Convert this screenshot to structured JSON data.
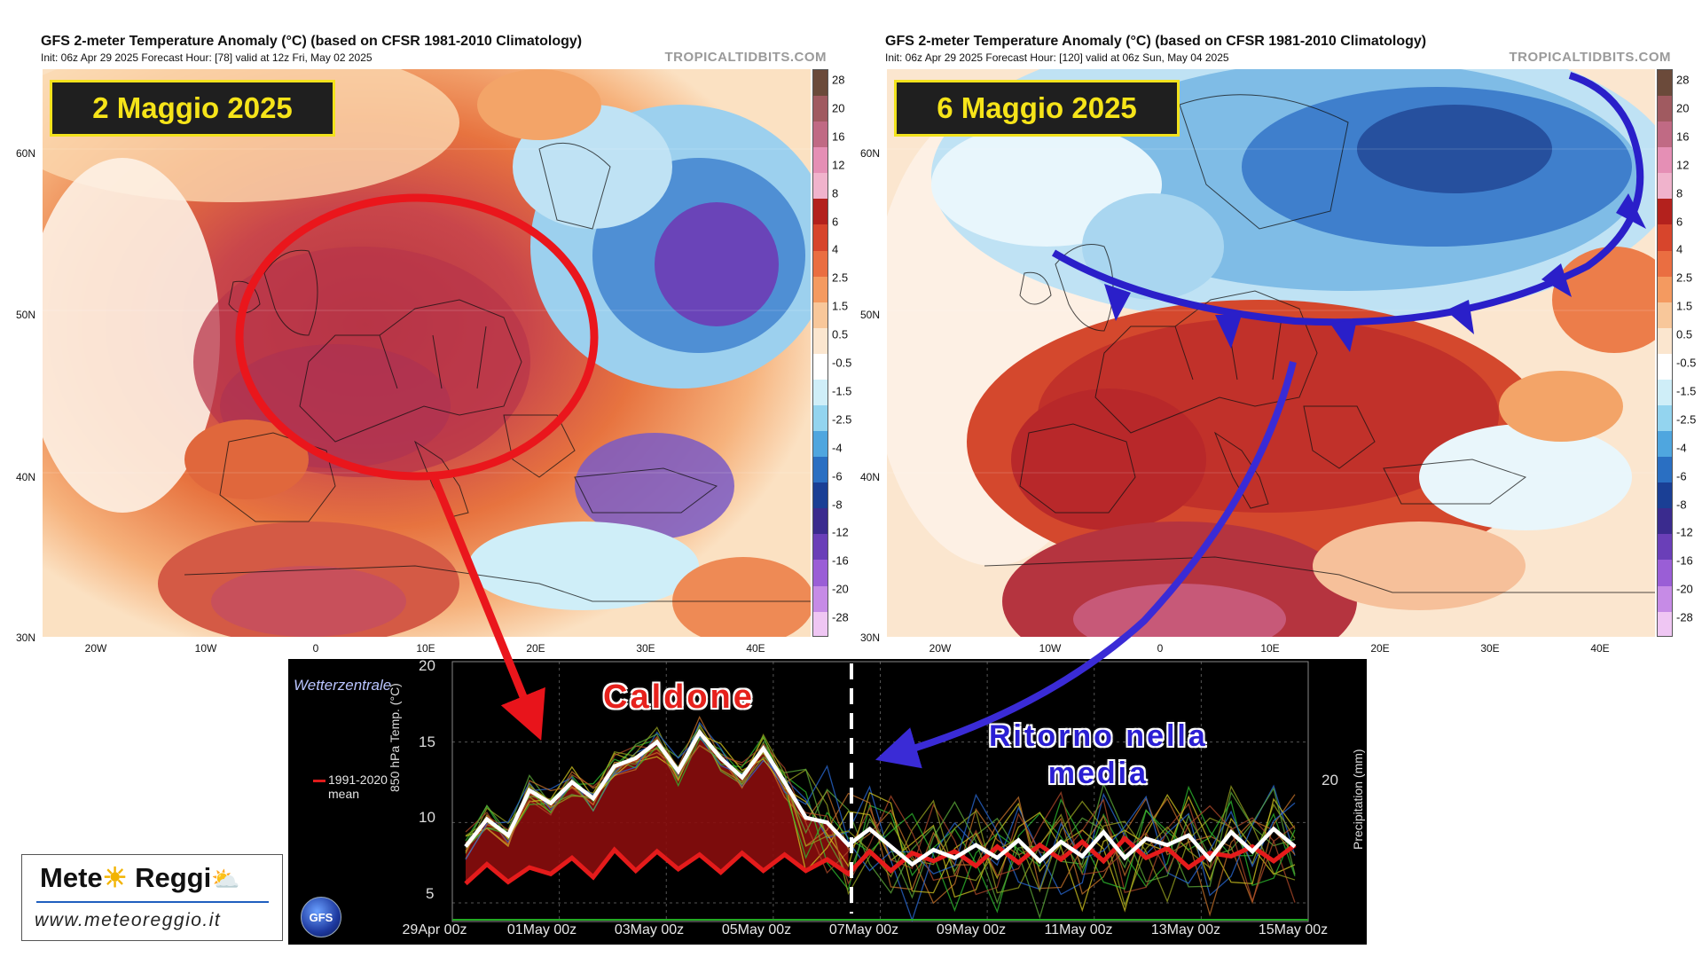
{
  "panels": [
    {
      "title": "GFS 2-meter Temperature Anomaly (°C) (based on CFSR 1981-2010 Climatology)",
      "subtitle": "Init: 06z Apr 29 2025   Forecast Hour: [78]   valid at 12z Fri, May 02 2025",
      "credit": "TROPICALTIDBITS.COM",
      "date_label": "2 Maggio 2025"
    },
    {
      "title": "GFS 2-meter Temperature Anomaly (°C) (based on CFSR 1981-2010 Climatology)",
      "subtitle": "Init: 06z Apr 29 2025   Forecast Hour: [120]   valid at 06z Sun, May 04 2025",
      "credit": "TROPICALTIDBITS.COM",
      "date_label": "6 Maggio 2025"
    }
  ],
  "map_axes": {
    "lat_labels": [
      "60N",
      "50N",
      "40N",
      "30N"
    ],
    "lon_labels": [
      "20W",
      "10W",
      "0",
      "10E",
      "20E",
      "30E",
      "40E"
    ]
  },
  "colorbar": {
    "labels": [
      "28",
      "20",
      "16",
      "12",
      "8",
      "6",
      "4",
      "2.5",
      "1.5",
      "0.5",
      "-0.5",
      "-1.5",
      "-2.5",
      "-4",
      "-6",
      "-8",
      "-12",
      "-16",
      "-20",
      "-28"
    ],
    "colors": [
      "#6b4a3a",
      "#a05a60",
      "#c06a84",
      "#e58fb5",
      "#f0b3cc",
      "#b3211d",
      "#d7452c",
      "#ea6e41",
      "#f49a60",
      "#f8c79a",
      "#fbe6cf",
      "#ffffff",
      "#cfeef8",
      "#93d4ef",
      "#4fa6df",
      "#2a6fc2",
      "#1a3f95",
      "#3a2b8e",
      "#6a3fb8",
      "#9a5ed6",
      "#c68be6",
      "#efc6f3"
    ]
  },
  "meteogram": {
    "logo": "Wetterzentrale",
    "mean_label_1": "1991-2020",
    "mean_label_2": "mean",
    "y_left_label": "850 hPa Temp. (°C)",
    "y_right_label": "Precipitation (mm)",
    "y_ticks": [
      "20",
      "15",
      "10",
      "5"
    ],
    "y_right_tick": "20",
    "x_ticks": [
      "29Apr 00z",
      "01May 00z",
      "03May 00z",
      "05May 00z",
      "07May 00z",
      "09May 00z",
      "11May 00z",
      "13May 00z",
      "15May 00z"
    ],
    "badge": "GFS",
    "annotation_hot": "Caldone",
    "annotation_return_1": "Ritorno nella",
    "annotation_return_2": "media",
    "ylim": [
      4,
      20
    ],
    "mean_series": [
      6.2,
      7.4,
      6.3,
      7.2,
      6.8,
      7.8,
      6.6,
      8.3,
      7.0,
      8.2,
      7.1,
      8.0,
      6.9,
      8.1,
      7.0,
      8.0,
      7.0,
      7.7,
      6.8,
      8.2,
      7.0,
      8.1,
      7.6,
      8.2,
      7.3,
      8.5,
      7.5,
      8.6,
      7.7,
      8.8,
      7.6,
      9.0,
      7.8,
      8.4,
      7.2,
      8.1,
      7.9,
      8.5,
      7.6,
      8.6
    ],
    "ensemble_mean": [
      8.5,
      10.2,
      9.2,
      12.0,
      11.2,
      12.5,
      11.5,
      13.5,
      14.0,
      15.0,
      13.2,
      15.6,
      14.0,
      12.8,
      14.6,
      12.5,
      10.3,
      10.0,
      8.6,
      9.6,
      8.5,
      7.4,
      8.3,
      7.8,
      8.6,
      7.8,
      8.9,
      7.6,
      8.8,
      7.9,
      9.4,
      7.8,
      9.0,
      8.6,
      9.2,
      7.7,
      9.4,
      8.2,
      9.6,
      8.5
    ]
  },
  "logo": {
    "name_1": "Mete",
    "name_2": "Reggi",
    "url": "www.meteoreggio.it"
  }
}
